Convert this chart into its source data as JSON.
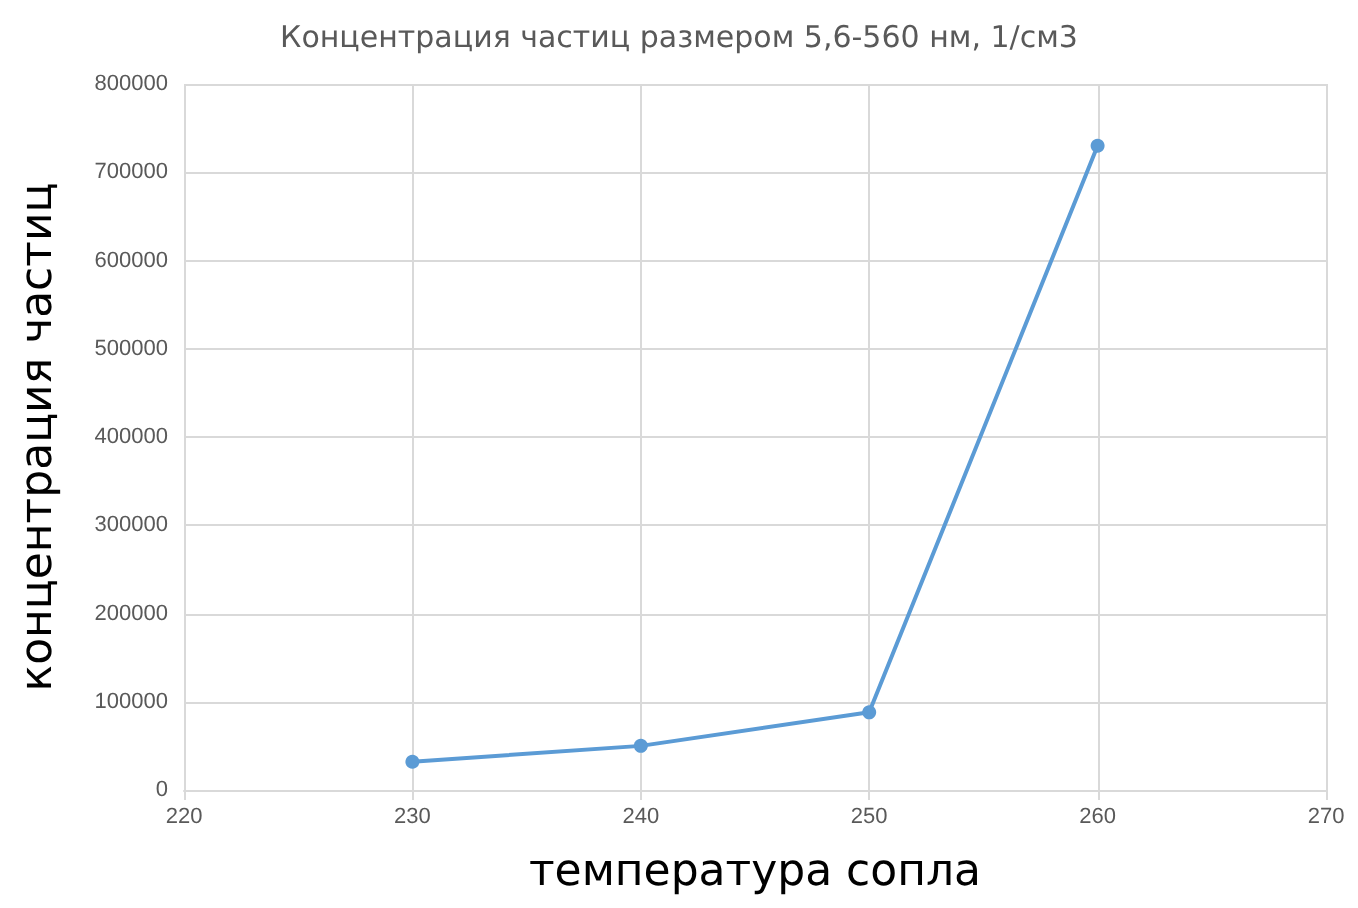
{
  "chart_data": {
    "type": "line",
    "title": "Концентрация частиц размером 5,6-560 нм, 1/см3",
    "xlabel": "температура сопла",
    "ylabel": "концентрация частиц",
    "x": [
      230,
      240,
      250,
      260
    ],
    "series": [
      {
        "color": "#5b9bd5",
        "values": [
          32000,
          50000,
          88000,
          730000
        ]
      }
    ],
    "xlim": [
      220,
      270
    ],
    "xticks": [
      220,
      230,
      240,
      250,
      260,
      270
    ],
    "ylim": [
      0,
      800000
    ],
    "yticks": [
      0,
      100000,
      200000,
      300000,
      400000,
      500000,
      600000,
      700000,
      800000
    ],
    "grid": true,
    "marker": "circle",
    "line_style": "solid"
  }
}
